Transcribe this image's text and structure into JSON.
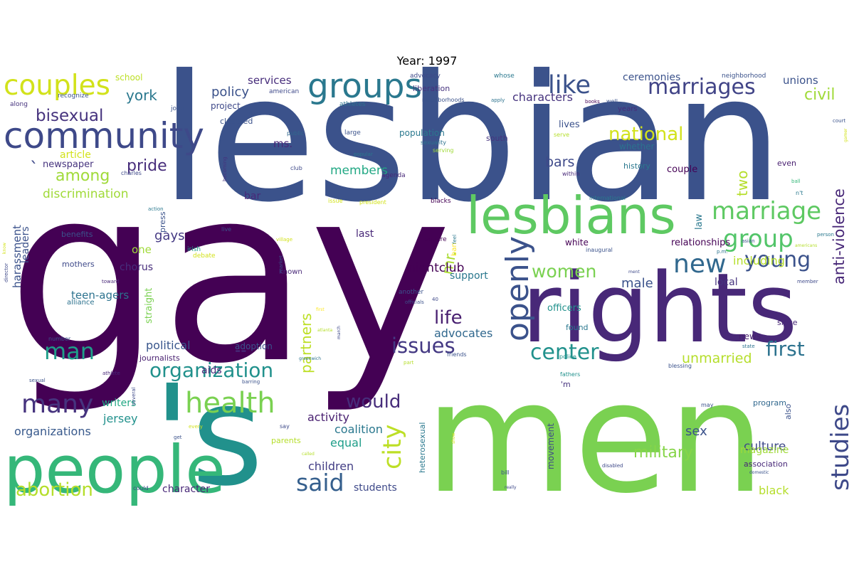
{
  "title": "Year: 1997",
  "words": [
    {
      "text": "gay",
      "color": "#440154"
    },
    {
      "text": "lesbian",
      "color": "#3b528b"
    },
    {
      "text": "men",
      "color": "#7ad151"
    },
    {
      "text": "rights",
      "color": "#482878"
    },
    {
      "text": "'s",
      "color": "#21918c"
    },
    {
      "text": "people",
      "color": "#35b779"
    },
    {
      "text": "lesbians",
      "color": "#5ec962"
    },
    {
      "text": "community",
      "color": "#3e4989"
    },
    {
      "text": "groups",
      "color": "#2a788e"
    },
    {
      "text": "couples",
      "color": "#d2e21b"
    },
    {
      "text": "marriages",
      "color": "#414487"
    },
    {
      "text": "health",
      "color": "#7ad151"
    },
    {
      "text": "marriage",
      "color": "#5ec962"
    },
    {
      "text": "new",
      "color": "#31688e"
    },
    {
      "text": "openly",
      "color": "#3b528b"
    },
    {
      "text": "studies",
      "color": "#3e4989"
    },
    {
      "text": "like",
      "color": "#3b528b"
    },
    {
      "text": "group",
      "color": "#52c569"
    },
    {
      "text": "many",
      "color": "#46337e"
    },
    {
      "text": "organization",
      "color": "#21918c"
    },
    {
      "text": "said",
      "color": "#355f8d"
    },
    {
      "text": "city",
      "color": "#bddf26"
    },
    {
      "text": "young",
      "color": "#3b528b"
    },
    {
      "text": "center",
      "color": "#21918c"
    },
    {
      "text": "issues",
      "color": "#443983"
    },
    {
      "text": "first",
      "color": "#2c728e"
    },
    {
      "text": "national",
      "color": "#d2e21b"
    },
    {
      "text": "women",
      "color": "#7ad151"
    },
    {
      "text": "man",
      "color": "#1f9e89"
    },
    {
      "text": "abortion",
      "color": "#b5de2b"
    },
    {
      "text": "bisexual",
      "color": "#46337e"
    },
    {
      "text": "anti-violence",
      "color": "#482878"
    },
    {
      "text": "would",
      "color": "#472d7b"
    },
    {
      "text": "life",
      "color": "#481f70"
    },
    {
      "text": "pride",
      "color": "#472d7b"
    },
    {
      "text": "military",
      "color": "#86d549"
    },
    {
      "text": "civil",
      "color": "#a0da39"
    },
    {
      "text": "among",
      "color": "#a0da39"
    },
    {
      "text": "unmarried",
      "color": "#b5de2b"
    },
    {
      "text": "partners",
      "color": "#bddf26"
    },
    {
      "text": "two",
      "color": "#b5de2b"
    },
    {
      "text": "policy",
      "color": "#3b528b"
    },
    {
      "text": "york",
      "color": "#2a788e"
    },
    {
      "text": "bars",
      "color": "#3e4989"
    },
    {
      "text": "members",
      "color": "#22a884"
    },
    {
      "text": "mr.",
      "color": "#aadc32"
    },
    {
      "text": "culture",
      "color": "#3e4989"
    },
    {
      "text": "nightclub",
      "color": "#440154"
    },
    {
      "text": "discrimination",
      "color": "#a0da39"
    },
    {
      "text": "characters",
      "color": "#46337e"
    },
    {
      "text": "sex",
      "color": "#3b528b"
    },
    {
      "text": "--",
      "color": "#46337e"
    },
    {
      "text": "gays",
      "color": "#443983"
    },
    {
      "text": "male",
      "color": "#3b528b"
    },
    {
      "text": "advocates",
      "color": "#31688e"
    },
    {
      "text": "organizations",
      "color": "#38598c"
    },
    {
      "text": "political",
      "color": "#39568c"
    },
    {
      "text": "harassment",
      "color": "#3b528b"
    },
    {
      "text": "children",
      "color": "#433e85"
    },
    {
      "text": "including",
      "color": "#b5de2b"
    },
    {
      "text": "teen-agers",
      "color": "#2c728e"
    },
    {
      "text": "jersey",
      "color": "#21918c"
    },
    {
      "text": "coalition",
      "color": "#2a788e"
    },
    {
      "text": "equal",
      "color": "#1f9e89"
    },
    {
      "text": "activity",
      "color": "#481f70"
    },
    {
      "text": "students",
      "color": "#3e4989"
    },
    {
      "text": "black",
      "color": "#b5de2b"
    },
    {
      "text": "magazine",
      "color": "#a0da39"
    },
    {
      "text": "services",
      "color": "#472d7b"
    },
    {
      "text": "unions",
      "color": "#3b528b"
    },
    {
      "text": "ceremonies",
      "color": "#3b528b"
    },
    {
      "text": "support",
      "color": "#2a788e"
    },
    {
      "text": "aids",
      "color": "#482878"
    },
    {
      "text": "writers",
      "color": "#22a884"
    },
    {
      "text": "couple",
      "color": "#440154"
    },
    {
      "text": "relationships",
      "color": "#440154"
    },
    {
      "text": "one",
      "color": "#a0da39"
    },
    {
      "text": "chorus",
      "color": "#472d7b"
    },
    {
      "text": "character",
      "color": "#482878"
    },
    {
      "text": "article",
      "color": "#d2e21b"
    },
    {
      "text": "newspaper",
      "color": "#46337e"
    },
    {
      "text": "bar",
      "color": "#482878"
    },
    {
      "text": "leaders",
      "color": "#3b528b"
    },
    {
      "text": "ms.",
      "color": "#482878"
    },
    {
      "text": "officers",
      "color": "#21918c"
    },
    {
      "text": "straight",
      "color": "#7ad151"
    },
    {
      "text": "law",
      "color": "#2a788e"
    },
    {
      "text": "school",
      "color": "#bddf26"
    },
    {
      "text": "project",
      "color": "#3e4989"
    },
    {
      "text": "population",
      "color": "#2a788e"
    },
    {
      "text": "adoption",
      "color": "#3b528b"
    },
    {
      "text": "lives",
      "color": "#3b528b"
    },
    {
      "text": "white",
      "color": "#440154"
    },
    {
      "text": "local",
      "color": "#46337e"
    },
    {
      "text": "last",
      "color": "#482878"
    },
    {
      "text": "movement",
      "color": "#3e4989"
    },
    {
      "text": "news",
      "color": "#481f70"
    },
    {
      "text": "whether",
      "color": "#2c728e"
    },
    {
      "text": "liberation",
      "color": "#46337e"
    },
    {
      "text": "closeted",
      "color": "#3b528b"
    },
    {
      "text": "south",
      "color": "#46337e"
    },
    {
      "text": "history",
      "color": "#2a788e"
    },
    {
      "text": "found",
      "color": "#2a788e"
    },
    {
      "text": "heterosexual",
      "color": "#2a788e"
    },
    {
      "text": "association",
      "color": "#482878"
    },
    {
      "text": "parents",
      "color": "#b5de2b"
    },
    {
      "text": "since",
      "color": "#482878"
    },
    {
      "text": "journalists",
      "color": "#481f70"
    },
    {
      "text": "benefits",
      "color": "#3b528b"
    },
    {
      "text": "mothers",
      "color": "#3e4989"
    },
    {
      "text": "also",
      "color": "#3b528b"
    },
    {
      "text": "even",
      "color": "#481f70"
    },
    {
      "text": "program",
      "color": "#31688e"
    },
    {
      "text": "press",
      "color": "#3b528b"
    },
    {
      "text": "known",
      "color": "#482878"
    },
    {
      "text": "alliance",
      "color": "#2c728e"
    },
    {
      "text": "years",
      "color": "#472d7b"
    },
    {
      "text": "american",
      "color": "#3e4989"
    },
    {
      "text": "advocacy",
      "color": "#3e4989"
    },
    {
      "text": "athletes",
      "color": "#2c728e"
    },
    {
      "text": "john",
      "color": "#3b528b"
    },
    {
      "text": "recognize",
      "color": "#3b528b"
    },
    {
      "text": "along",
      "color": "#46337e"
    },
    {
      "text": "whose",
      "color": "#2a788e"
    },
    {
      "text": "neighborhood",
      "color": "#3b528b"
    },
    {
      "text": "neighborhoods",
      "color": "#3b528b"
    },
    {
      "text": "well",
      "color": "#3b528b"
    },
    {
      "text": "books",
      "color": "#440154"
    },
    {
      "text": "court",
      "color": "#3b528b"
    },
    {
      "text": "public",
      "color": "#31688e"
    },
    {
      "text": "sexuality",
      "color": "#2c728e"
    },
    {
      "text": "serving",
      "color": "#a0da39"
    },
    {
      "text": "five",
      "color": "#3b528b"
    },
    {
      "text": "apply",
      "color": "#2c728e"
    },
    {
      "text": "serve",
      "color": "#b5de2b"
    },
    {
      "text": "large",
      "color": "#3b528b"
    },
    {
      "text": "popular",
      "color": "#2a788e"
    },
    {
      "text": "becoming",
      "color": "#46337e"
    },
    {
      "text": "club",
      "color": "#3e4989"
    },
    {
      "text": "agenda",
      "color": "#482878"
    },
    {
      "text": "blacks",
      "color": "#440154"
    },
    {
      "text": "within",
      "color": "#482878"
    },
    {
      "text": "charles",
      "color": "#3e4989"
    },
    {
      "text": "issue",
      "color": "#d2e21b"
    },
    {
      "text": "president",
      "color": "#d2e21b"
    },
    {
      "text": "international",
      "color": "#2a788e"
    },
    {
      "text": "ball",
      "color": "#35b779"
    },
    {
      "text": "n't",
      "color": "#2a788e"
    },
    {
      "text": "action",
      "color": "#2a788e"
    },
    {
      "text": "debate",
      "color": "#d2e21b"
    },
    {
      "text": "live",
      "color": "#3b528b"
    },
    {
      "text": "irish",
      "color": "#1f9e89"
    },
    {
      "text": "village",
      "color": "#d2e21b"
    },
    {
      "text": "market",
      "color": "#3b528b"
    },
    {
      "text": "square",
      "color": "#440154"
    },
    {
      "text": "ban",
      "color": "#fde725"
    },
    {
      "text": "feel",
      "color": "#2a788e"
    },
    {
      "text": "inaugural",
      "color": "#3b528b"
    },
    {
      "text": "person",
      "color": "#2a788e"
    },
    {
      "text": "americans",
      "color": "#b5de2b"
    },
    {
      "text": "asian",
      "color": "#3b528b"
    },
    {
      "text": "p.m.",
      "color": "#2c728e"
    },
    {
      "text": "ment",
      "color": "#3e4989"
    },
    {
      "text": "member",
      "color": "#3e4989"
    },
    {
      "text": "director",
      "color": "#3e4989"
    },
    {
      "text": "toward",
      "color": "#482878"
    },
    {
      "text": "another",
      "color": "#3b528b"
    },
    {
      "text": "officials",
      "color": "#3b528b"
    },
    {
      "text": "first",
      "color": "#fde725"
    },
    {
      "text": "number",
      "color": "#3b528b"
    },
    {
      "text": "atlanta",
      "color": "#b5de2b"
    },
    {
      "text": "march",
      "color": "#3e4989"
    },
    {
      "text": "greenwich",
      "color": "#2c728e"
    },
    {
      "text": "friends",
      "color": "#3b528b"
    },
    {
      "text": "part",
      "color": "#b5de2b"
    },
    {
      "text": "police",
      "color": "#21918c"
    },
    {
      "text": "fathers",
      "color": "#21918c"
    },
    {
      "text": "blessing",
      "color": "#3b528b"
    },
    {
      "text": "state",
      "color": "#2c728e"
    },
    {
      "text": "sexual",
      "color": "#3b528b"
    },
    {
      "text": "athlete",
      "color": "#482878"
    },
    {
      "text": "several",
      "color": "#3e4989"
    },
    {
      "text": "barring",
      "color": "#3b528b"
    },
    {
      "text": "every",
      "color": "#d2e21b"
    },
    {
      "text": "get",
      "color": "#3b528b"
    },
    {
      "text": "say",
      "color": "#3e4989"
    },
    {
      "text": "called",
      "color": "#b5de2b"
    },
    {
      "text": "show",
      "color": "#d2e21b"
    },
    {
      "text": "could",
      "color": "#3e4989"
    },
    {
      "text": "bill",
      "color": "#3b528b"
    },
    {
      "text": "disabled",
      "color": "#3e4989"
    },
    {
      "text": "domestic",
      "color": "#3b528b"
    },
    {
      "text": "really",
      "color": "#3e4989"
    },
    {
      "text": "may",
      "color": "#3b528b"
    },
    {
      "text": "40",
      "color": "#3e4989"
    },
    {
      "text": "'m",
      "color": "#46337e"
    },
    {
      "text": "`",
      "color": "#3e4989"
    },
    {
      "text": "know",
      "color": "#d2e21b"
    },
    {
      "text": "gamer",
      "color": "#d2e21b"
    }
  ]
}
